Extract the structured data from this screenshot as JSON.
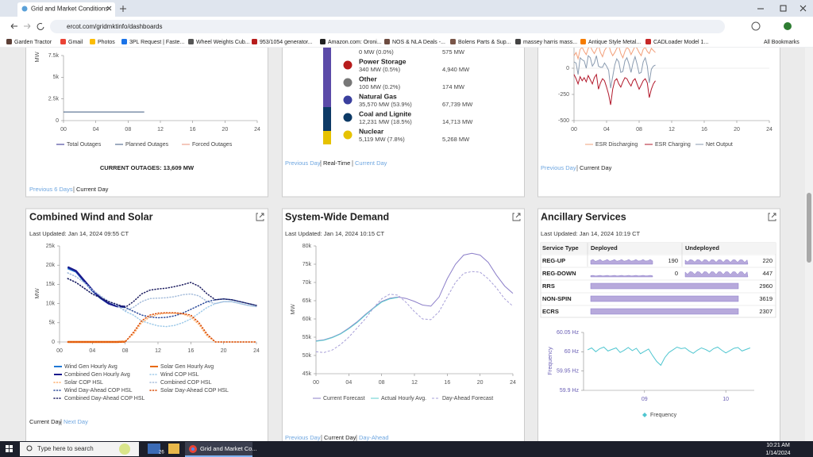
{
  "browser": {
    "tab_title": "Grid and Market Conditions",
    "url": "ercot.com/gridmktinfo/dashboards",
    "bookmarks": [
      "Garden Tractor",
      "Gmail",
      "Photos",
      "3PL Request | Faste...",
      "Wheel Weights Cub...",
      "953/1054 generator...",
      "Amazon.com: Oroni...",
      "NOS & NLA Deals -...",
      "Bolens Parts & Sup...",
      "massey harris mass...",
      "Antique Style Metal...",
      "CADLoader Model 1..."
    ],
    "all_bookmarks": "All Bookmarks"
  },
  "outages": {
    "type": "line",
    "ylabel": "MW",
    "xlim": [
      0,
      24
    ],
    "ylim": [
      0,
      7500
    ],
    "yticks": [
      0,
      {
        "value": 2500,
        "label": "2.5k"
      },
      {
        "value": 5000,
        "label": "5k"
      },
      {
        "value": 7500,
        "label": "7.5k"
      }
    ],
    "xticks": [
      {
        "value": 0,
        "label": "00"
      },
      {
        "value": 4,
        "label": "04"
      },
      {
        "value": 8,
        "label": "08"
      },
      12,
      16,
      20,
      24
    ],
    "x": [
      0,
      1,
      2,
      3,
      4,
      5,
      6,
      7,
      8,
      9,
      10
    ],
    "series": [
      {
        "name": "Total Outages",
        "color": "#2e2a8c"
      },
      {
        "name": "Planned Outages",
        "color": "#3d5a80",
        "values": [
          1000,
          1000,
          1000,
          1000,
          1000,
          1000,
          1000,
          1000,
          1000,
          1000,
          1000
        ]
      },
      {
        "name": "Forced Outages",
        "color": "#e8907a"
      }
    ],
    "current": "CURRENT OUTAGES: 13,609 MW",
    "footer": [
      "Previous 6 Days",
      "Current Day"
    ]
  },
  "fuel_mix": {
    "items": [
      {
        "detail": "0 MW (0.0%)",
        "capacity": "575 MW"
      },
      {
        "name": "Power Storage",
        "detail": "340 MW (0.5%)",
        "capacity": "4,940 MW",
        "color": "#b71c1c"
      },
      {
        "name": "Other",
        "detail": "100 MW (0.2%)",
        "capacity": "174 MW",
        "color": "#777777"
      },
      {
        "name": "Natural Gas",
        "detail": "35,570 MW (53.9%)",
        "capacity": "67,739 MW",
        "color": "#3a3f9e"
      },
      {
        "name": "Coal and Lignite",
        "detail": "12,231 MW (18.5%)",
        "capacity": "14,713 MW",
        "color": "#0d3a66"
      },
      {
        "name": "Nuclear",
        "detail": "5,119 MW (7.8%)",
        "capacity": "5,268 MW",
        "color": "#e6c200"
      }
    ],
    "footer": [
      "Previous Day",
      "Real-Time",
      "Current Day"
    ]
  },
  "esr": {
    "type": "line",
    "xlim": [
      0,
      24
    ],
    "ylim": [
      -500,
      250
    ],
    "yticks": [
      0,
      -250,
      -500
    ],
    "xticks": [
      {
        "value": 0,
        "label": "00"
      },
      {
        "value": 4,
        "label": "04"
      },
      {
        "value": 8,
        "label": "08"
      },
      12,
      16,
      20,
      24
    ],
    "x": [
      0,
      0.25,
      0.5,
      0.75,
      1,
      1.25,
      1.5,
      1.75,
      2,
      2.25,
      2.5,
      2.75,
      3,
      3.25,
      3.5,
      3.75,
      4,
      4.25,
      4.5,
      4.75,
      5,
      5.25,
      5.5,
      5.75,
      6,
      6.25,
      6.5,
      6.75,
      7,
      7.25,
      7.5,
      7.75,
      8,
      8.25,
      8.5,
      8.75,
      9,
      9.25,
      9.5,
      9.75,
      10
    ],
    "series": [
      {
        "name": "ESR Discharging",
        "color": "#f2a07b",
        "values": [
          120,
          150,
          90,
          180,
          200,
          160,
          130,
          190,
          210,
          170,
          140,
          180,
          220,
          150,
          110,
          170,
          200,
          230,
          160,
          120,
          150,
          190,
          210,
          140,
          100,
          160,
          200,
          180,
          130,
          170,
          210,
          190,
          150,
          120,
          180,
          200,
          160,
          140,
          190,
          170,
          150
        ]
      },
      {
        "name": "ESR Charging",
        "color": "#b2182b",
        "values": [
          -60,
          -100,
          -150,
          -80,
          -120,
          -90,
          -130,
          -70,
          -110,
          -150,
          -90,
          -60,
          -200,
          -140,
          -100,
          -120,
          -180,
          -250,
          -350,
          -200,
          -120,
          -100,
          -150,
          -180,
          -130,
          -90,
          -100,
          -140,
          -170,
          -120,
          -100,
          -150,
          -200,
          -160,
          -120,
          -100,
          -140,
          -280,
          -200,
          -150,
          -120
        ]
      },
      {
        "name": "Net Output",
        "color": "#8a9bb0",
        "values": [
          60,
          50,
          -60,
          100,
          80,
          70,
          0,
          120,
          100,
          20,
          50,
          120,
          20,
          10,
          10,
          50,
          20,
          -20,
          -190,
          -80,
          30,
          90,
          60,
          -40,
          -30,
          70,
          100,
          40,
          -40,
          50,
          110,
          40,
          -50,
          -40,
          60,
          100,
          20,
          -140,
          -10,
          20,
          30
        ]
      }
    ],
    "footer": [
      "Previous Day",
      "Current Day"
    ]
  },
  "wind_solar": {
    "type": "line",
    "title": "Combined Wind and Solar",
    "updated": "Last Updated: Jan 14, 2024 09:55 CT",
    "ylabel": "MW",
    "xlim": [
      0,
      24
    ],
    "ylim": [
      0,
      25000
    ],
    "yticks": [
      0,
      {
        "value": 5000,
        "label": "5k"
      },
      {
        "value": 10000,
        "label": "10k"
      },
      {
        "value": 15000,
        "label": "15k"
      },
      {
        "value": 20000,
        "label": "20k"
      },
      {
        "value": 25000,
        "label": "25k"
      }
    ],
    "xticks": [
      {
        "value": 0,
        "label": "00"
      },
      {
        "value": 4,
        "label": "04"
      },
      {
        "value": 8,
        "label": "08"
      },
      12,
      16,
      20,
      24
    ],
    "x": [
      0,
      1,
      2,
      3,
      4,
      5,
      6,
      7,
      8,
      9,
      10,
      11,
      12,
      13,
      14,
      15,
      16,
      17,
      18,
      19,
      20,
      21,
      22,
      23,
      24
    ],
    "series": [
      {
        "name": "Wind Gen Hourly Avg",
        "color": "#1f77d4",
        "style": "thick",
        "values": [
          null,
          19200,
          18300,
          15800,
          13400,
          11400,
          10000,
          9300,
          9100,
          null,
          null,
          null,
          null,
          null,
          null,
          null,
          null,
          null,
          null,
          null,
          null,
          null,
          null,
          null,
          null
        ]
      },
      {
        "name": "Solar Gen Hourly Avg",
        "color": "#e8690b",
        "style": "thick",
        "values": [
          null,
          0,
          0,
          0,
          0,
          0,
          0,
          0,
          100,
          null,
          null,
          null,
          null,
          null,
          null,
          null,
          null,
          null,
          null,
          null,
          null,
          null,
          null,
          null,
          null
        ]
      },
      {
        "name": "Combined Gen Hourly Avg",
        "color": "#1a1a8c",
        "style": "thick",
        "values": [
          null,
          19500,
          18500,
          16000,
          13500,
          11500,
          10000,
          9300,
          9200,
          null,
          null,
          null,
          null,
          null,
          null,
          null,
          null,
          null,
          null,
          null,
          null,
          null,
          null,
          null,
          null
        ]
      },
      {
        "name": "Wind COP HSL",
        "color": "#9ecae9",
        "style": "dotted",
        "values": [
          null,
          18000,
          17000,
          15500,
          13500,
          12000,
          10500,
          9500,
          8000,
          7000,
          5500,
          4800,
          4200,
          4000,
          4300,
          5000,
          6000,
          7500,
          9000,
          10000,
          10500,
          10500,
          10000,
          9500,
          9200
        ]
      },
      {
        "name": "Solar COP HSL",
        "color": "#fdae6b",
        "style": "dotted",
        "values": [
          null,
          0,
          0,
          0,
          0,
          0,
          0,
          0,
          200,
          2000,
          5000,
          6500,
          7200,
          7500,
          7500,
          7300,
          6500,
          4500,
          1500,
          0,
          0,
          0,
          0,
          0,
          0
        ]
      },
      {
        "name": "Combined COP HSL",
        "color": "#a6bddb",
        "style": "dotted",
        "values": [
          null,
          18000,
          17000,
          15500,
          13500,
          12000,
          10500,
          9500,
          8200,
          9000,
          10500,
          11300,
          11400,
          11500,
          11800,
          12300,
          12500,
          12000,
          10500,
          10000,
          10500,
          10500,
          10000,
          9500,
          9200
        ]
      },
      {
        "name": "Wind Day-Ahead COP HSL",
        "color": "#2b4a9a",
        "style": "dotted",
        "values": [
          null,
          16500,
          15500,
          14000,
          12500,
          11500,
          10500,
          9800,
          9000,
          8000,
          7000,
          6500,
          6300,
          6400,
          6800,
          7500,
          8500,
          9500,
          10500,
          11000,
          11200,
          11000,
          10500,
          10000,
          9500
        ]
      },
      {
        "name": "Solar Day-Ahead COP HSL",
        "color": "#d94801",
        "style": "dotted",
        "values": [
          null,
          0,
          0,
          0,
          0,
          0,
          0,
          0,
          0,
          2500,
          5500,
          7000,
          7500,
          7600,
          7600,
          7400,
          7000,
          5000,
          2000,
          0,
          0,
          0,
          0,
          0,
          0
        ]
      },
      {
        "name": "Combined Day-Ahead COP HSL",
        "color": "#1a1a5e",
        "style": "dotted",
        "values": [
          null,
          16500,
          15500,
          14000,
          12500,
          11500,
          10500,
          9800,
          9000,
          10500,
          12500,
          13500,
          13800,
          14000,
          14400,
          14900,
          15500,
          14500,
          12500,
          11000,
          11200,
          11000,
          10500,
          10000,
          9500
        ]
      }
    ],
    "footer": [
      "Current Day",
      "Next Day"
    ]
  },
  "demand": {
    "type": "line",
    "title": "System-Wide Demand",
    "updated": "Last Updated: Jan 14, 2024 10:15 CT",
    "ylabel": "MW",
    "xlim": [
      0,
      24
    ],
    "ylim": [
      45000,
      80000
    ],
    "yticks": [
      {
        "value": 45000,
        "label": "45k"
      },
      {
        "value": 50000,
        "label": "50k"
      },
      {
        "value": 55000,
        "label": "55k"
      },
      {
        "value": 60000,
        "label": "60k"
      },
      {
        "value": 65000,
        "label": "65k"
      },
      {
        "value": 70000,
        "label": "70k"
      },
      {
        "value": 75000,
        "label": "75k"
      },
      {
        "value": 80000,
        "label": "80k"
      }
    ],
    "xticks": [
      {
        "value": 0,
        "label": "00"
      },
      {
        "value": 4,
        "label": "04"
      },
      {
        "value": 8,
        "label": "08"
      },
      12,
      16,
      20,
      24
    ],
    "x": [
      0,
      1,
      2,
      3,
      4,
      5,
      6,
      7,
      8,
      9,
      10,
      11,
      12,
      13,
      14,
      15,
      16,
      17,
      18,
      19,
      20,
      21,
      22,
      23,
      24
    ],
    "series": [
      {
        "name": "Current Forecast",
        "color": "#8c7fc9",
        "style": "solid",
        "values": [
          54000,
          54300,
          55000,
          56000,
          57500,
          59200,
          61200,
          63000,
          64800,
          65700,
          66000,
          65600,
          64800,
          63800,
          63500,
          66000,
          71000,
          75000,
          77500,
          78000,
          77500,
          75500,
          72000,
          69000,
          67000
        ]
      },
      {
        "name": "Actual Hourly Avg.",
        "color": "#5fcfcf",
        "style": "solid",
        "values": [
          53900,
          54200,
          54900,
          55900,
          57300,
          59000,
          61000,
          62900,
          64600,
          65500,
          65900,
          null,
          null,
          null,
          null,
          null,
          null,
          null,
          null,
          null,
          null,
          null,
          null,
          null,
          null
        ]
      },
      {
        "name": "Day-Ahead Forecast",
        "color": "#a79fd8",
        "style": "dashed",
        "values": [
          51000,
          50800,
          51500,
          53000,
          55000,
          57500,
          60000,
          63000,
          65500,
          66800,
          66500,
          64500,
          62000,
          60000,
          59800,
          62000,
          66000,
          70000,
          72500,
          73000,
          72800,
          71000,
          68500,
          65500,
          63500
        ]
      }
    ],
    "footer": [
      "Previous Day",
      "Current Day",
      "Day-Ahead"
    ]
  },
  "ancillary": {
    "title": "Ancillary Services",
    "updated": "Last Updated: Jan 14, 2024 10:19 CT",
    "table": {
      "header": [
        "Service Type",
        "Deployed",
        "Undeployed"
      ],
      "rows": [
        [
          "REG-UP",
          "190",
          "220"
        ],
        [
          "REG-DOWN",
          "0",
          "447"
        ],
        [
          "RRS",
          "2960"
        ],
        [
          "NON-SPIN",
          "3619"
        ],
        [
          "ECRS",
          "2307"
        ]
      ]
    },
    "frequency": {
      "type": "line",
      "ylabel": "Frequency",
      "xlim": [
        8.25,
        10.35
      ],
      "ylim": [
        59.9,
        60.05
      ],
      "yticks": [
        {
          "value": 60.05,
          "label": "60.05 Hz"
        },
        {
          "value": 60,
          "label": "60 Hz"
        },
        {
          "value": 59.95,
          "label": "59.95 Hz"
        },
        {
          "value": 59.9,
          "label": "59.9 Hz"
        }
      ],
      "xticks": [
        {
          "value": 9,
          "label": "09"
        },
        10
      ],
      "x": [
        8.3,
        8.35,
        8.4,
        8.45,
        8.5,
        8.55,
        8.6,
        8.65,
        8.7,
        8.75,
        8.8,
        8.85,
        8.9,
        8.95,
        9,
        9.05,
        9.1,
        9.15,
        9.2,
        9.25,
        9.3,
        9.35,
        9.4,
        9.45,
        9.5,
        9.55,
        9.6,
        9.65,
        9.7,
        9.75,
        9.8,
        9.85,
        9.9,
        9.95,
        10,
        10.05,
        10.1,
        10.15,
        10.2,
        10.25,
        10.3
      ],
      "series": [
        {
          "name": "Frequency",
          "color": "#4fc6d0",
          "style": "solid",
          "values": [
            60.005,
            60.01,
            60.0,
            60.008,
            60.012,
            60.002,
            60.006,
            60.01,
            59.998,
            60.004,
            60.011,
            60.003,
            60.009,
            59.995,
            60.001,
            60.007,
            59.99,
            59.975,
            59.965,
            59.985,
            59.998,
            60.005,
            60.012,
            60.008,
            60.01,
            60.002,
            59.996,
            60.004,
            60.01,
            60.006,
            60.0,
            60.008,
            60.012,
            60.004,
            59.997,
            60.003,
            60.009,
            60.011,
            60.002,
            60.006,
            60.01
          ]
        }
      ]
    }
  },
  "taskbar": {
    "search": "Type here to search",
    "weather_badge": "26",
    "app": "Grid and Market Co...",
    "time": "10:21 AM",
    "date": "1/14/2024"
  }
}
